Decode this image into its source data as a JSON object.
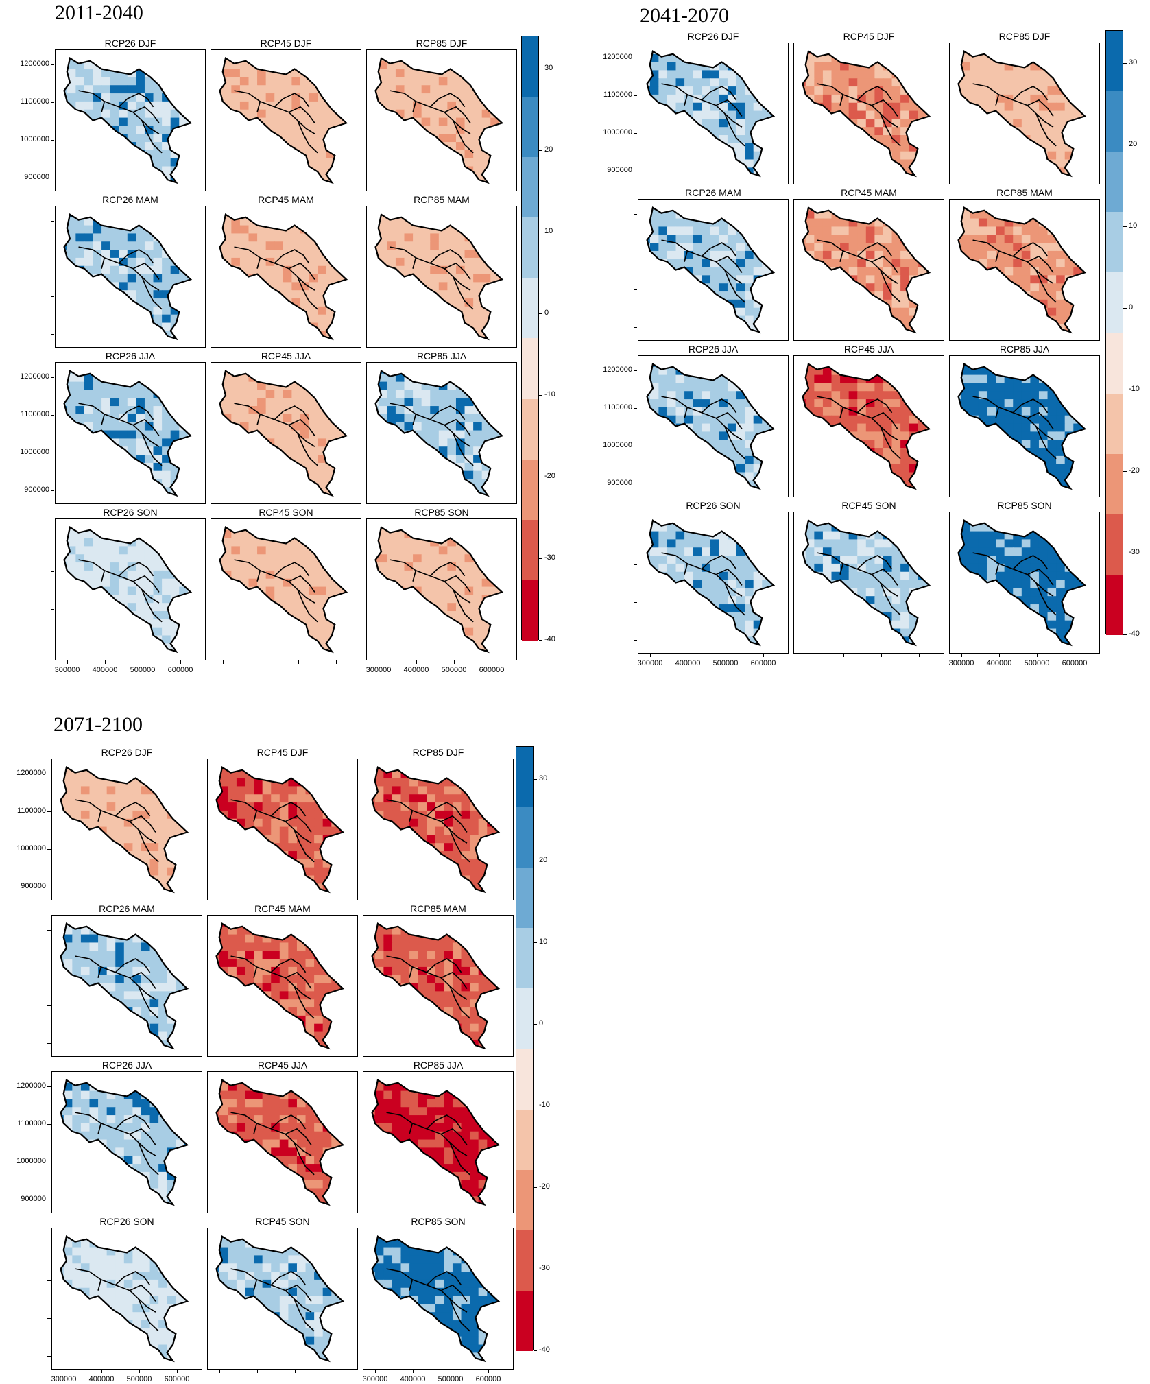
{
  "groups": [
    {
      "title": "2011-2040"
    },
    {
      "title": "2041-2070"
    },
    {
      "title": "2071-2100"
    }
  ],
  "panel_titles": [
    [
      "RCP26  DJF",
      "RCP45  DJF",
      "RCP85  DJF"
    ],
    [
      "RCP26  MAM",
      "RCP45  MAM",
      "RCP85  MAM"
    ],
    [
      "RCP26  JJA",
      "RCP45  JJA",
      "RCP85  JJA"
    ],
    [
      "RCP26  SON",
      "RCP45  SON",
      "RCP85  SON"
    ]
  ],
  "y_tick_labels": [
    "1200000",
    "1100000",
    "1000000",
    "900000"
  ],
  "x_tick_labels": [
    "300000",
    "400000",
    "500000",
    "600000"
  ],
  "colorbar": {
    "labels": [
      "30",
      "20",
      "10",
      "0",
      "-10",
      "-20",
      "-30",
      "-40"
    ],
    "colors": [
      "#0b6aad",
      "#3b8bc2",
      "#6eaad3",
      "#a8cde4",
      "#dbe8f1",
      "#f8e5dc",
      "#f4c4aa",
      "#ec9677",
      "#dc5a4c",
      "#ca0020"
    ]
  },
  "maps": {
    "2011-2040": [
      [
        1,
        -1,
        -1
      ],
      [
        1,
        -1,
        -1
      ],
      [
        1,
        -1,
        1
      ],
      [
        0,
        -1,
        -1
      ]
    ],
    "2041-2070": [
      [
        1,
        -2,
        -1
      ],
      [
        1,
        -2,
        -2
      ],
      [
        1,
        -3,
        2
      ],
      [
        1,
        1,
        2
      ]
    ],
    "2071-2100": [
      [
        -1,
        -3,
        -3
      ],
      [
        1,
        -3,
        -3
      ],
      [
        1,
        -3,
        -4
      ],
      [
        0,
        1,
        2
      ]
    ]
  }
}
